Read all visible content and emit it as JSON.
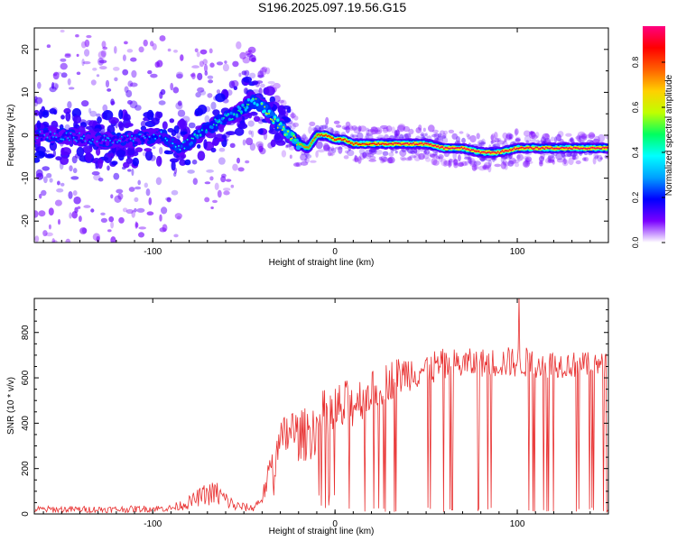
{
  "title": "S196.2025.097.19.56.G15",
  "colors": {
    "snr_line": "#e83030",
    "spectrum_colormap": [
      "#ffffff",
      "#7a00ff",
      "#0000ff",
      "#00a0ff",
      "#00ffff",
      "#00ff60",
      "#c0ff00",
      "#ffd000",
      "#ff6000",
      "#ff0000",
      "#ff0080"
    ]
  },
  "chart_data": [
    {
      "type": "heatmap",
      "xlabel": "Height of straight line (km)",
      "ylabel": "Frequency (Hz)",
      "xlim": [
        -165,
        150
      ],
      "ylim": [
        -25,
        25
      ],
      "xticks": [
        -100,
        0,
        100
      ],
      "yticks": [
        -20,
        -10,
        0,
        10,
        20
      ],
      "colorbar": {
        "label": "Normalized spectral amplitude",
        "range": [
          0,
          0.96
        ],
        "ticks": [
          0.0,
          0.2,
          0.4,
          0.6,
          0.8
        ]
      },
      "ridge": {
        "x": [
          -165,
          -150,
          -130,
          -110,
          -95,
          -85,
          -75,
          -65,
          -55,
          -45,
          -38,
          -32,
          -25,
          -20,
          -15,
          -10,
          -5,
          0,
          5,
          10,
          20,
          30,
          40,
          50,
          60,
          70,
          80,
          90,
          100,
          110,
          120,
          130,
          140,
          150
        ],
        "y": [
          0,
          0,
          -1,
          -1,
          0,
          -3,
          0,
          3,
          5,
          8,
          6,
          3,
          0,
          -2,
          -3,
          0,
          0,
          -1,
          -1,
          -2,
          -2,
          -2,
          -2,
          -2,
          -3,
          -3,
          -4,
          -4,
          -3,
          -3,
          -3,
          -3,
          -3,
          -3
        ],
        "amplitude": [
          0.25,
          0.25,
          0.25,
          0.25,
          0.3,
          0.35,
          0.4,
          0.4,
          0.4,
          0.5,
          0.55,
          0.6,
          0.65,
          0.7,
          0.75,
          0.8,
          0.85,
          0.85,
          0.85,
          0.85,
          0.88,
          0.9,
          0.92,
          0.92,
          0.93,
          0.93,
          0.92,
          0.92,
          0.92,
          0.92,
          0.93,
          0.93,
          0.93,
          0.93
        ]
      },
      "noise_extent_hz": {
        "x": [
          -165,
          -120,
          -80,
          -60,
          -40,
          -25,
          0,
          50,
          100,
          150
        ],
        "halfwidth": [
          25,
          25,
          22,
          18,
          12,
          6,
          4,
          4,
          4,
          3
        ]
      }
    },
    {
      "type": "line",
      "xlabel": "Height of straight line (km)",
      "ylabel": "SNR (10 * v/v)",
      "xlim": [
        -165,
        150
      ],
      "ylim": [
        0,
        950
      ],
      "xticks": [
        -100,
        0,
        100
      ],
      "yticks": [
        0,
        200,
        400,
        600,
        800
      ],
      "envelope": {
        "x": [
          -165,
          -120,
          -90,
          -80,
          -72,
          -65,
          -55,
          -45,
          -40,
          -35,
          -30,
          -25,
          -20,
          -15,
          -10,
          -5,
          0,
          10,
          20,
          30,
          40,
          50,
          60,
          80,
          100,
          120,
          150
        ],
        "upper": [
          35,
          35,
          40,
          80,
          130,
          150,
          60,
          40,
          100,
          280,
          400,
          500,
          450,
          480,
          520,
          560,
          580,
          600,
          630,
          680,
          710,
          720,
          730,
          730,
          740,
          720,
          710
        ],
        "lower": [
          5,
          5,
          10,
          20,
          40,
          30,
          10,
          10,
          40,
          120,
          200,
          250,
          230,
          230,
          260,
          280,
          300,
          380,
          450,
          500,
          540,
          560,
          580,
          600,
          600,
          600,
          600
        ]
      },
      "peak": {
        "x": 101,
        "y": 960
      },
      "dropouts_start_x": 12
    }
  ]
}
